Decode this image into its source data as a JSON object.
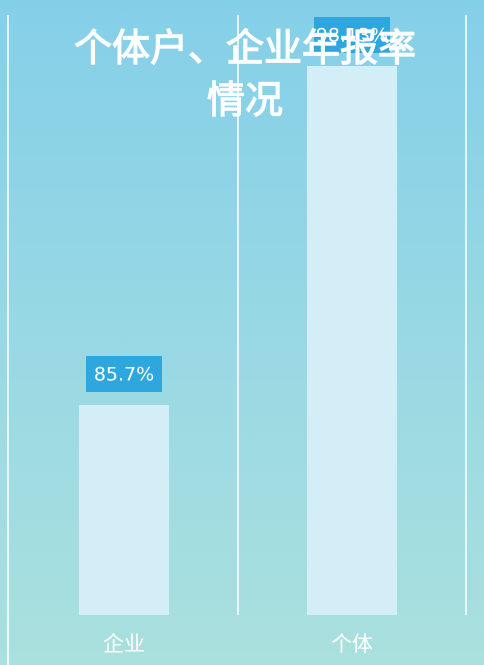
{
  "chart_data": {
    "type": "bar",
    "title": "个体户、企业年报率情况",
    "categories": [
      "企业",
      "个体"
    ],
    "values": [
      85.7,
      98.13
    ],
    "value_labels": [
      "85.7%",
      "98.13%"
    ],
    "color": "#d4eef8",
    "label_color": "#2ea7df",
    "ylim": [
      78,
      100
    ]
  }
}
